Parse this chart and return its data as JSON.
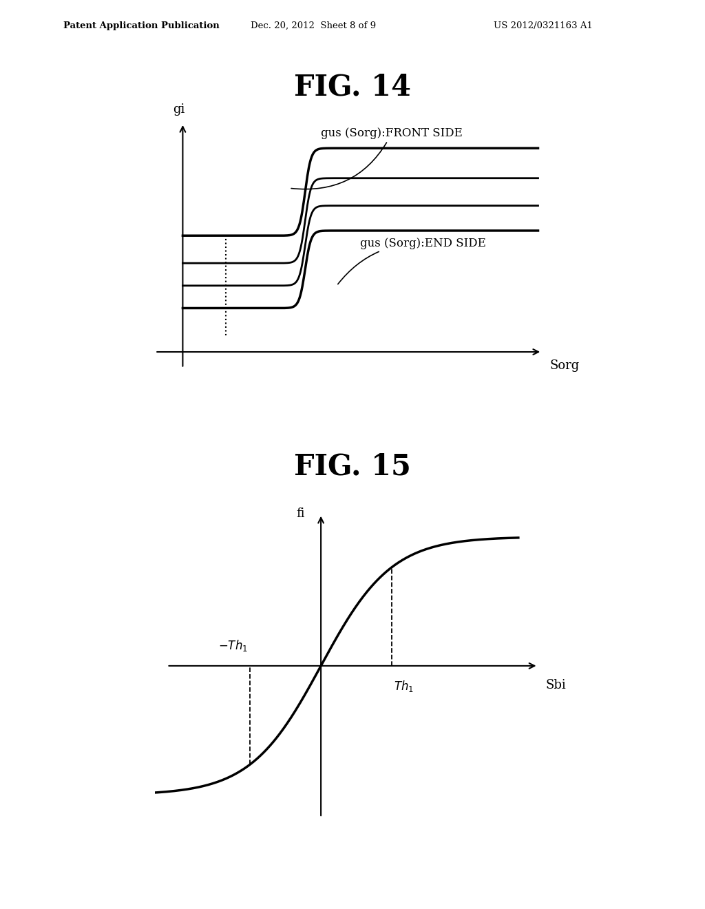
{
  "fig14_title": "FIG. 14",
  "fig15_title": "FIG. 15",
  "header_left": "Patent Application Publication",
  "header_center": "Dec. 20, 2012  Sheet 8 of 9",
  "header_right": "US 2012/0321163 A1",
  "fig14_ylabel": "gi",
  "fig14_xlabel": "Sorg",
  "fig14_label_front": "gus (Sorg):FRONT SIDE",
  "fig14_label_end": "gus (Sorg):END SIDE",
  "fig15_ylabel": "fi",
  "fig15_xlabel": "Sbi",
  "fig15_label_th1_pos": "Th₁",
  "fig15_label_th1_neg": "-Th₁",
  "bg_color": "#ffffff",
  "line_color": "#000000",
  "font_size_header": 9.5,
  "font_size_title": 30,
  "font_size_label": 12,
  "font_size_axis_label": 13
}
